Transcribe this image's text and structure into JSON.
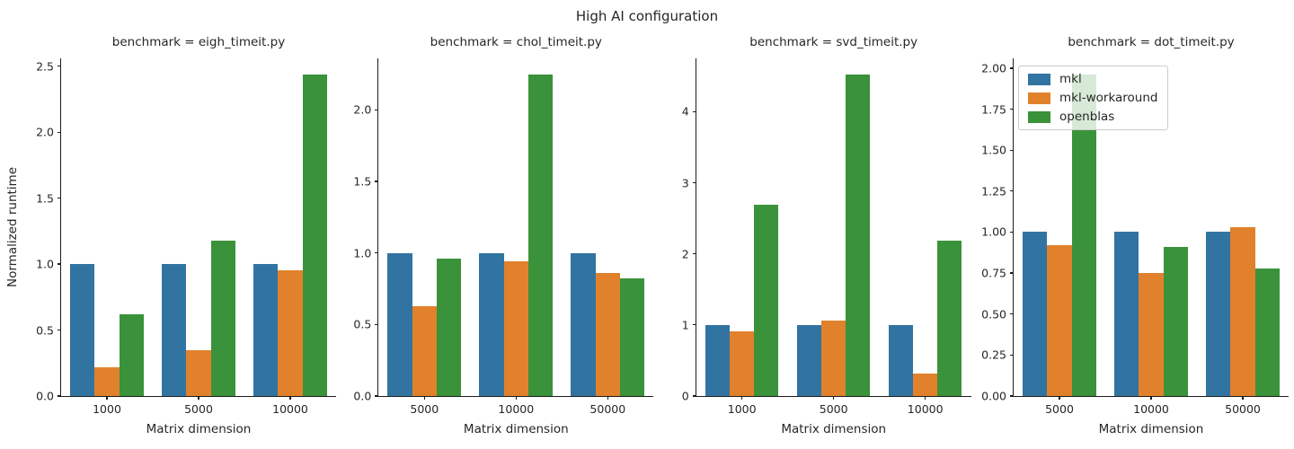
{
  "figure": {
    "suptitle": "High AI configuration",
    "ylabel": "Normalized runtime",
    "xlabel": "Matrix dimension"
  },
  "legend": {
    "position": "upper-left-of-last-facet",
    "entries": [
      {
        "label": "mkl",
        "color": "#3274a1"
      },
      {
        "label": "mkl-workaround",
        "color": "#e1812c"
      },
      {
        "label": "openblas",
        "color": "#3a923a"
      }
    ]
  },
  "chart_data": [
    {
      "type": "bar",
      "id": "eigh",
      "title": "benchmark = eigh_timeit.py",
      "xlabel": "Matrix dimension",
      "ylabel": "Normalized runtime",
      "categories": [
        "1000",
        "5000",
        "10000"
      ],
      "series": [
        {
          "name": "mkl",
          "color": "#3274a1",
          "values": [
            1.0,
            1.0,
            1.0
          ]
        },
        {
          "name": "mkl-workaround",
          "color": "#e1812c",
          "values": [
            0.22,
            0.35,
            0.95
          ]
        },
        {
          "name": "openblas",
          "color": "#3a923a",
          "values": [
            0.62,
            1.18,
            2.44
          ]
        }
      ],
      "ylim": [
        0,
        2.56
      ],
      "yticks": [
        {
          "value": 0.0,
          "label": "0.0"
        },
        {
          "value": 0.5,
          "label": "0.5"
        },
        {
          "value": 1.0,
          "label": "1.0"
        },
        {
          "value": 1.5,
          "label": "1.5"
        },
        {
          "value": 2.0,
          "label": "2.0"
        },
        {
          "value": 2.5,
          "label": "2.5"
        }
      ],
      "grid": false
    },
    {
      "type": "bar",
      "id": "chol",
      "title": "benchmark = chol_timeit.py",
      "xlabel": "Matrix dimension",
      "ylabel": "",
      "categories": [
        "5000",
        "10000",
        "50000"
      ],
      "series": [
        {
          "name": "mkl",
          "color": "#3274a1",
          "values": [
            1.0,
            1.0,
            1.0
          ]
        },
        {
          "name": "mkl-workaround",
          "color": "#e1812c",
          "values": [
            0.63,
            0.94,
            0.86
          ]
        },
        {
          "name": "openblas",
          "color": "#3a923a",
          "values": [
            0.96,
            2.25,
            0.82
          ]
        }
      ],
      "ylim": [
        0,
        2.36
      ],
      "yticks": [
        {
          "value": 0.0,
          "label": "0.0"
        },
        {
          "value": 0.5,
          "label": "0.5"
        },
        {
          "value": 1.0,
          "label": "1.0"
        },
        {
          "value": 1.5,
          "label": "1.5"
        },
        {
          "value": 2.0,
          "label": "2.0"
        }
      ],
      "grid": false
    },
    {
      "type": "bar",
      "id": "svd",
      "title": "benchmark = svd_timeit.py",
      "xlabel": "Matrix dimension",
      "ylabel": "",
      "categories": [
        "1000",
        "5000",
        "10000"
      ],
      "series": [
        {
          "name": "mkl",
          "color": "#3274a1",
          "values": [
            1.0,
            1.0,
            1.0
          ]
        },
        {
          "name": "mkl-workaround",
          "color": "#e1812c",
          "values": [
            0.91,
            1.06,
            0.32
          ]
        },
        {
          "name": "openblas",
          "color": "#3a923a",
          "values": [
            2.69,
            4.52,
            2.19
          ]
        }
      ],
      "ylim": [
        0,
        4.75
      ],
      "yticks": [
        {
          "value": 0,
          "label": "0"
        },
        {
          "value": 1,
          "label": "1"
        },
        {
          "value": 2,
          "label": "2"
        },
        {
          "value": 3,
          "label": "3"
        },
        {
          "value": 4,
          "label": "4"
        }
      ],
      "grid": false
    },
    {
      "type": "bar",
      "id": "dot",
      "title": "benchmark = dot_timeit.py",
      "xlabel": "Matrix dimension",
      "ylabel": "",
      "categories": [
        "5000",
        "10000",
        "50000"
      ],
      "series": [
        {
          "name": "mkl",
          "color": "#3274a1",
          "values": [
            1.0,
            1.0,
            1.0
          ]
        },
        {
          "name": "mkl-workaround",
          "color": "#e1812c",
          "values": [
            0.92,
            0.75,
            1.03
          ]
        },
        {
          "name": "openblas",
          "color": "#3a923a",
          "values": [
            1.96,
            0.91,
            0.78
          ]
        }
      ],
      "ylim": [
        0,
        2.06
      ],
      "yticks": [
        {
          "value": 0.0,
          "label": "0.00"
        },
        {
          "value": 0.25,
          "label": "0.25"
        },
        {
          "value": 0.5,
          "label": "0.50"
        },
        {
          "value": 0.75,
          "label": "0.75"
        },
        {
          "value": 1.0,
          "label": "1.00"
        },
        {
          "value": 1.25,
          "label": "1.25"
        },
        {
          "value": 1.5,
          "label": "1.50"
        },
        {
          "value": 1.75,
          "label": "1.75"
        },
        {
          "value": 2.0,
          "label": "2.00"
        }
      ],
      "grid": false
    }
  ]
}
